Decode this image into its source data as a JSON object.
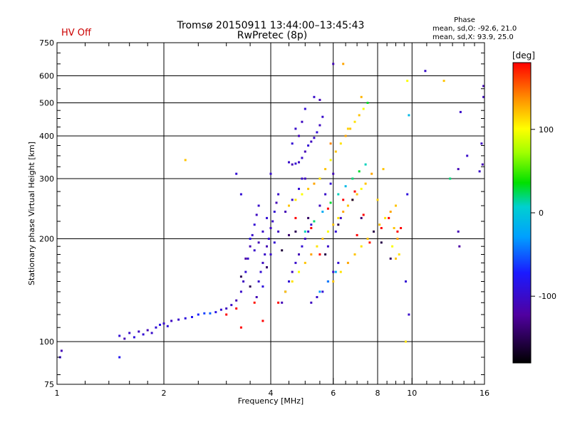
{
  "header": {
    "title": "Tromsø 20150911 13:44:00–13:45:43",
    "subtitle": "RwPretec (8p)",
    "status": "HV Off",
    "status_color": "#cc0000",
    "stats_heading": "Phase",
    "stats_line_o": "mean, sd,O: -92.6, 21.0",
    "stats_line_x": "mean, sd,X: 93.9, 25.0"
  },
  "colorbar": {
    "label": "[deg]",
    "ticks": [
      {
        "value": 100,
        "label": "100"
      },
      {
        "value": 0,
        "label": "0"
      },
      {
        "value": -100,
        "label": "-100"
      }
    ],
    "range": [
      -180,
      180
    ]
  },
  "chart_data": {
    "type": "scatter",
    "xlabel": "Frequency [MHz]",
    "ylabel": "Stationary phase Virtual Height [km]",
    "xscale": "log",
    "yscale": "log",
    "xlim": [
      1,
      16
    ],
    "ylim": [
      75,
      750
    ],
    "xticks": [
      {
        "value": 1,
        "label": "1"
      },
      {
        "value": 2,
        "label": "2"
      },
      {
        "value": 4,
        "label": "4"
      },
      {
        "value": 6,
        "label": "6"
      },
      {
        "value": 8,
        "label": "8"
      },
      {
        "value": 10,
        "label": "10"
      },
      {
        "value": 16,
        "label": "16"
      }
    ],
    "yticks": [
      {
        "value": 75,
        "label": "75"
      },
      {
        "value": 100,
        "label": "100"
      },
      {
        "value": 200,
        "label": "200"
      },
      {
        "value": 300,
        "label": "300"
      },
      {
        "value": 400,
        "label": "400"
      },
      {
        "value": 500,
        "label": "500"
      },
      {
        "value": 600,
        "label": "600"
      },
      {
        "value": 750,
        "label": "750"
      }
    ],
    "grid_x": [
      2,
      4,
      6,
      8,
      10
    ],
    "grid_y": [
      100,
      200,
      300,
      400,
      500,
      600
    ],
    "grid": true,
    "series": [
      {
        "points": [
          [
            1.02,
            90,
            -95
          ],
          [
            1.03,
            94,
            -110
          ],
          [
            1.5,
            90,
            -80
          ],
          [
            1.5,
            104,
            -95
          ],
          [
            1.55,
            102,
            -110
          ],
          [
            1.6,
            106,
            -100
          ],
          [
            1.65,
            103,
            -90
          ],
          [
            1.7,
            107,
            -105
          ],
          [
            1.75,
            105,
            -95
          ],
          [
            1.8,
            108,
            -110
          ],
          [
            1.85,
            106,
            -100
          ],
          [
            1.9,
            110,
            -95
          ],
          [
            1.95,
            112,
            -85
          ],
          [
            2.0,
            113,
            -100
          ],
          [
            2.05,
            111,
            -90
          ],
          [
            2.1,
            115,
            -105
          ],
          [
            2.2,
            116,
            -100
          ],
          [
            2.3,
            117,
            -90
          ],
          [
            2.4,
            118,
            -80
          ],
          [
            2.5,
            120,
            -70
          ],
          [
            2.6,
            121,
            -60
          ],
          [
            2.7,
            121,
            -50
          ],
          [
            2.8,
            122,
            -85
          ],
          [
            2.9,
            124,
            -95
          ],
          [
            3.0,
            125,
            -105
          ],
          [
            3.1,
            128,
            -100
          ],
          [
            3.2,
            132,
            -110
          ],
          [
            3.3,
            140,
            -100
          ],
          [
            3.35,
            150,
            -105
          ],
          [
            3.4,
            160,
            -95
          ],
          [
            3.45,
            175,
            -100
          ],
          [
            3.5,
            190,
            -110
          ],
          [
            3.55,
            205,
            -100
          ],
          [
            3.6,
            220,
            -95
          ],
          [
            3.65,
            235,
            -105
          ],
          [
            3.7,
            250,
            -100
          ],
          [
            3.3,
            270,
            -95
          ],
          [
            3.4,
            175,
            -120
          ],
          [
            3.5,
            200,
            -85
          ],
          [
            3.6,
            185,
            -100
          ],
          [
            3.65,
            135,
            -110
          ],
          [
            3.7,
            150,
            -100
          ],
          [
            3.75,
            160,
            -95
          ],
          [
            3.8,
            170,
            -105
          ],
          [
            3.85,
            180,
            -100
          ],
          [
            3.9,
            190,
            -110
          ],
          [
            3.95,
            200,
            -95
          ],
          [
            4.0,
            215,
            -105
          ],
          [
            4.05,
            225,
            -100
          ],
          [
            4.1,
            240,
            -95
          ],
          [
            4.15,
            255,
            -110
          ],
          [
            4.2,
            270,
            -100
          ],
          [
            3.8,
            145,
            -90
          ],
          [
            3.9,
            165,
            -115
          ],
          [
            4.0,
            180,
            -100
          ],
          [
            4.1,
            195,
            -95
          ],
          [
            4.2,
            210,
            -105
          ],
          [
            3.7,
            195,
            -110
          ],
          [
            3.8,
            210,
            -100
          ],
          [
            3.9,
            230,
            -95
          ],
          [
            4.3,
            130,
            -110
          ],
          [
            4.4,
            140,
            -100
          ],
          [
            4.5,
            150,
            -95
          ],
          [
            4.6,
            160,
            -105
          ],
          [
            4.7,
            170,
            -100
          ],
          [
            4.8,
            180,
            -110
          ],
          [
            4.9,
            190,
            -95
          ],
          [
            5.0,
            200,
            -105
          ],
          [
            5.1,
            210,
            -100
          ],
          [
            5.2,
            220,
            -95
          ],
          [
            4.4,
            240,
            -110
          ],
          [
            4.6,
            260,
            -100
          ],
          [
            4.8,
            280,
            -95
          ],
          [
            5.0,
            300,
            -105
          ],
          [
            4.5,
            335,
            -100
          ],
          [
            4.6,
            330,
            -110
          ],
          [
            4.7,
            332,
            -95
          ],
          [
            4.8,
            335,
            -105
          ],
          [
            4.9,
            345,
            -100
          ],
          [
            5.0,
            360,
            -110
          ],
          [
            5.1,
            375,
            -95
          ],
          [
            5.2,
            385,
            -105
          ],
          [
            5.3,
            395,
            -100
          ],
          [
            5.4,
            410,
            -95
          ],
          [
            5.5,
            430,
            -105
          ],
          [
            5.6,
            455,
            -100
          ],
          [
            5.5,
            510,
            -110
          ],
          [
            5.3,
            520,
            -100
          ],
          [
            5.0,
            480,
            -95
          ],
          [
            4.9,
            440,
            -105
          ],
          [
            4.7,
            420,
            -100
          ],
          [
            4.8,
            400,
            -110
          ],
          [
            4.6,
            380,
            -95
          ],
          [
            4.9,
            300,
            -100
          ],
          [
            5.2,
            130,
            -105
          ],
          [
            5.4,
            135,
            -100
          ],
          [
            5.6,
            140,
            -95
          ],
          [
            5.8,
            150,
            -110
          ],
          [
            6.0,
            160,
            -100
          ],
          [
            6.2,
            170,
            -95
          ],
          [
            5.5,
            250,
            -105
          ],
          [
            5.7,
            270,
            -100
          ],
          [
            5.9,
            290,
            -95
          ],
          [
            6.0,
            310,
            -110
          ],
          [
            5.8,
            190,
            -100
          ],
          [
            6.1,
            210,
            -95
          ],
          [
            6.3,
            230,
            -105
          ],
          [
            6.0,
            650,
            -110
          ],
          [
            4.0,
            310,
            -100
          ],
          [
            3.2,
            310,
            -95
          ],
          [
            4.4,
            140,
            120
          ],
          [
            4.6,
            150,
            110
          ],
          [
            4.8,
            160,
            100
          ],
          [
            5.0,
            170,
            120
          ],
          [
            5.2,
            180,
            130
          ],
          [
            5.4,
            190,
            110
          ],
          [
            5.6,
            200,
            120
          ],
          [
            5.8,
            210,
            100
          ],
          [
            6.0,
            220,
            120
          ],
          [
            6.2,
            230,
            110
          ],
          [
            6.4,
            240,
            130
          ],
          [
            6.6,
            250,
            120
          ],
          [
            6.8,
            260,
            110
          ],
          [
            7.0,
            270,
            120
          ],
          [
            7.2,
            280,
            100
          ],
          [
            7.4,
            290,
            120
          ],
          [
            4.5,
            250,
            120
          ],
          [
            4.7,
            260,
            110
          ],
          [
            4.9,
            270,
            100
          ],
          [
            5.1,
            280,
            120
          ],
          [
            5.3,
            290,
            130
          ],
          [
            5.5,
            300,
            110
          ],
          [
            5.7,
            320,
            120
          ],
          [
            5.9,
            340,
            100
          ],
          [
            6.1,
            360,
            120
          ],
          [
            6.3,
            380,
            110
          ],
          [
            6.5,
            400,
            130
          ],
          [
            6.7,
            420,
            120
          ],
          [
            6.9,
            440,
            110
          ],
          [
            7.1,
            460,
            120
          ],
          [
            7.3,
            480,
            100
          ],
          [
            7.5,
            500,
            120
          ],
          [
            6.0,
            150,
            120
          ],
          [
            6.3,
            160,
            110
          ],
          [
            6.6,
            170,
            130
          ],
          [
            6.9,
            180,
            120
          ],
          [
            7.2,
            190,
            110
          ],
          [
            7.5,
            200,
            120
          ],
          [
            7.8,
            210,
            100
          ],
          [
            8.1,
            220,
            120
          ],
          [
            8.4,
            230,
            110
          ],
          [
            8.7,
            240,
            130
          ],
          [
            9.0,
            250,
            120
          ],
          [
            9.2,
            180,
            110
          ],
          [
            9.0,
            175,
            120
          ],
          [
            8.8,
            190,
            100
          ],
          [
            9.1,
            200,
            130
          ],
          [
            8.9,
            215,
            120
          ],
          [
            5.0,
            210,
            10
          ],
          [
            5.3,
            225,
            20
          ],
          [
            5.6,
            240,
            -20
          ],
          [
            5.9,
            255,
            30
          ],
          [
            6.2,
            270,
            10
          ],
          [
            6.5,
            285,
            -10
          ],
          [
            6.8,
            300,
            20
          ],
          [
            7.1,
            315,
            30
          ],
          [
            7.4,
            330,
            10
          ],
          [
            5.5,
            140,
            -30
          ],
          [
            5.8,
            150,
            -40
          ],
          [
            6.1,
            160,
            -20
          ],
          [
            7.5,
            500,
            30
          ],
          [
            4.7,
            230,
            200
          ],
          [
            5.2,
            215,
            190
          ],
          [
            5.8,
            245,
            180
          ],
          [
            6.4,
            260,
            195
          ],
          [
            7.0,
            205,
            185
          ],
          [
            7.6,
            195,
            175
          ],
          [
            8.2,
            215,
            190
          ],
          [
            8.6,
            230,
            180
          ],
          [
            9.1,
            210,
            195
          ],
          [
            4.2,
            130,
            185
          ],
          [
            3.6,
            130,
            175
          ],
          [
            3.2,
            125,
            190
          ],
          [
            6.9,
            275,
            180
          ],
          [
            9.3,
            215,
            200
          ],
          [
            7.3,
            235,
            185
          ],
          [
            3.8,
            115,
            180
          ],
          [
            3.0,
            120,
            190
          ],
          [
            5.5,
            180,
            195
          ],
          [
            3.5,
            145,
            -150
          ],
          [
            3.9,
            165,
            -140
          ],
          [
            4.3,
            185,
            -160
          ],
          [
            4.7,
            210,
            -150
          ],
          [
            5.1,
            230,
            -145
          ],
          [
            5.7,
            180,
            -155
          ],
          [
            6.2,
            220,
            -150
          ],
          [
            6.8,
            260,
            -160
          ],
          [
            7.2,
            230,
            -140
          ],
          [
            7.8,
            210,
            -150
          ],
          [
            8.2,
            195,
            -155
          ],
          [
            8.7,
            175,
            -145
          ],
          [
            3.3,
            155,
            -150
          ],
          [
            4.5,
            205,
            -140
          ],
          [
            6.4,
            650,
            130
          ],
          [
            5.9,
            380,
            140
          ],
          [
            6.6,
            420,
            115
          ],
          [
            7.2,
            520,
            125
          ],
          [
            7.7,
            310,
            130
          ],
          [
            8.0,
            260,
            115
          ],
          [
            8.3,
            320,
            120
          ],
          [
            9.7,
            580,
            100
          ],
          [
            9.8,
            460,
            -10
          ],
          [
            10.9,
            620,
            -100
          ],
          [
            12.3,
            580,
            120
          ],
          [
            12.8,
            300,
            20
          ],
          [
            13.5,
            210,
            -110
          ],
          [
            13.7,
            470,
            -100
          ],
          [
            13.5,
            320,
            -110
          ],
          [
            13.6,
            190,
            -120
          ],
          [
            14.3,
            350,
            -100
          ],
          [
            15.9,
            560,
            -110
          ],
          [
            15.9,
            520,
            -105
          ],
          [
            15.8,
            330,
            -110
          ],
          [
            15.5,
            315,
            -100
          ],
          [
            15.7,
            380,
            -105
          ],
          [
            9.6,
            100,
            110
          ],
          [
            9.7,
            270,
            -90
          ],
          [
            9.6,
            150,
            -95
          ],
          [
            9.8,
            120,
            -100
          ],
          [
            2.3,
            340,
            120
          ],
          [
            3.3,
            110,
            190
          ]
        ]
      }
    ]
  }
}
